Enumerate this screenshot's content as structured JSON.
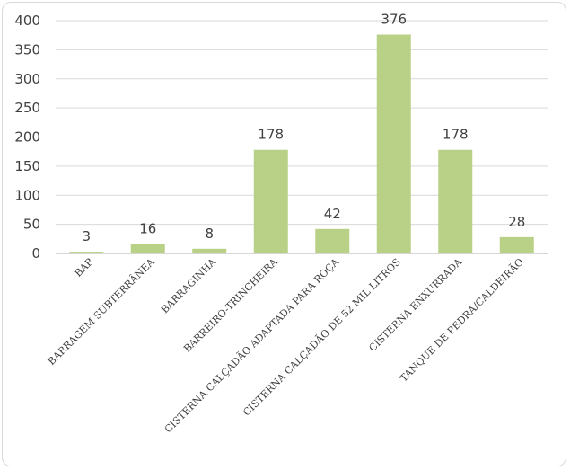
{
  "chart_data": {
    "type": "bar",
    "title": "",
    "xlabel": "",
    "ylabel": "",
    "categories": [
      "BAP",
      "BARRAGEM  SUBTERRÂNEA",
      "BARRAGINHA",
      "BARREIRO-TRINCHEIRA",
      "CISTERNA  CALÇADÃO ADAPTADA PARA ROÇA",
      "CISTERNA  CALÇADÃO DE 52 MIL LITROS",
      "CISTERNA  ENXURRADA",
      "TANQUE DE PEDRA/CALDEIRÃO"
    ],
    "values": [
      3,
      16,
      8,
      178,
      42,
      376,
      178,
      28
    ],
    "data_labels": [
      "3",
      "16",
      "8",
      "178",
      "42",
      "376",
      "178",
      "28"
    ],
    "yticks": [
      0,
      50,
      100,
      150,
      200,
      250,
      300,
      350,
      400
    ],
    "ylim": [
      0,
      400
    ],
    "grid": true,
    "legend": "none",
    "colors": {
      "bar": "#b8d186",
      "grid": "#d9d9d9",
      "axis": "#bfbfbf",
      "text": "#404040"
    }
  }
}
